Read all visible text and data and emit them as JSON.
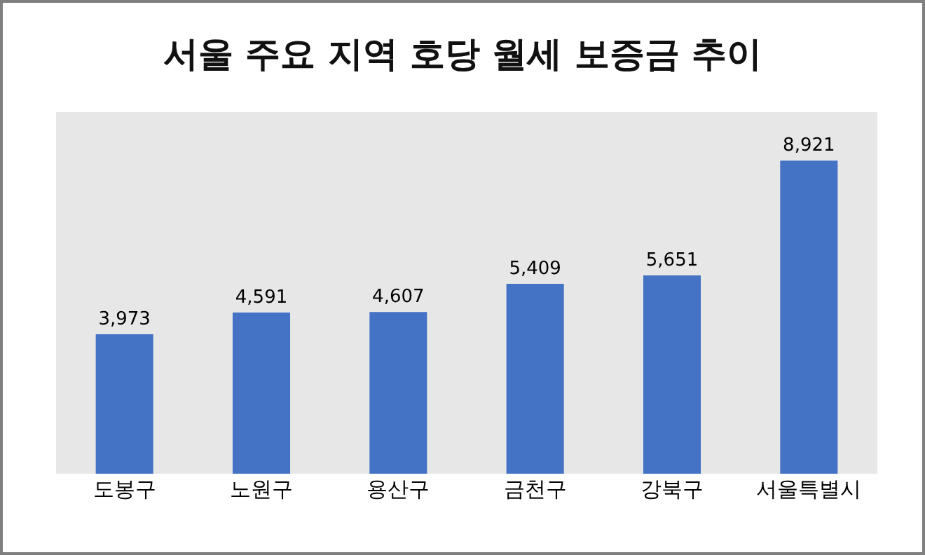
{
  "chart_data": {
    "type": "bar",
    "title": "서울 주요 지역 호당 월세 보증금 추이",
    "categories": [
      "도봉구",
      "노원구",
      "용산구",
      "금천구",
      "강북구",
      "서울특별시"
    ],
    "values": [
      3973,
      4591,
      4607,
      5409,
      5651,
      8921
    ],
    "value_labels": [
      "3,973",
      "4,591",
      "4,607",
      "5,409",
      "5,651",
      "8,921"
    ],
    "color": "#4472c4",
    "grid": false,
    "legend": false
  }
}
